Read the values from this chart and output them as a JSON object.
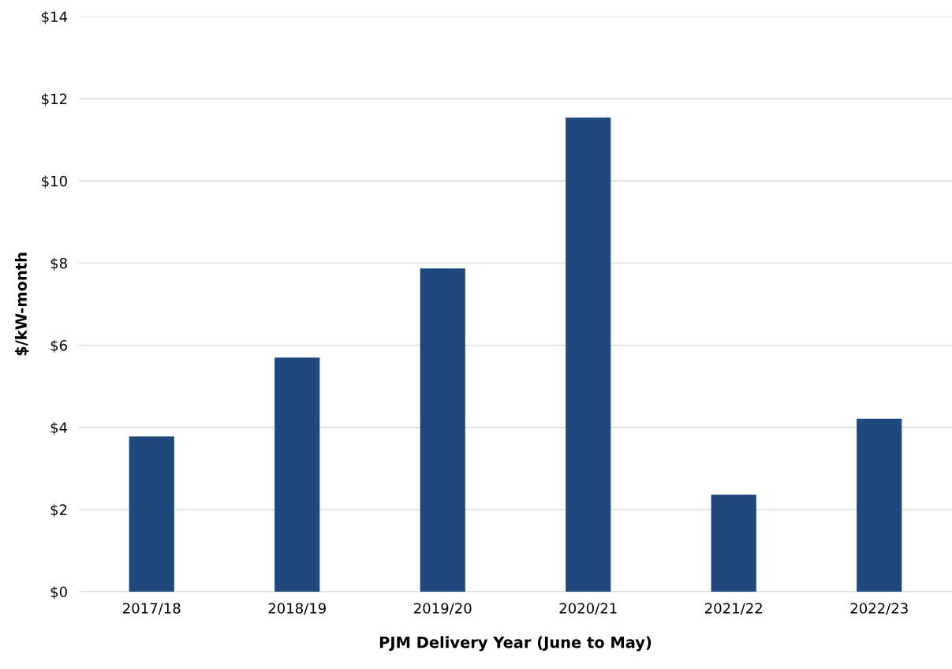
{
  "chart_data": {
    "type": "bar",
    "xlabel": "PJM Delivery Year (June to May)",
    "ylabel": "$/kW-month",
    "categories": [
      "2017/18",
      "2018/19",
      "2019/20",
      "2020/21",
      "2021/22",
      "2022/23"
    ],
    "values": [
      3.78,
      5.7,
      7.87,
      11.54,
      2.36,
      4.21
    ],
    "color": "#1f497d",
    "ylim": [
      0,
      14
    ],
    "yticks": [
      {
        "value": 0,
        "label": "$0"
      },
      {
        "value": 2,
        "label": "$2"
      },
      {
        "value": 4,
        "label": "$4"
      },
      {
        "value": 6,
        "label": "$6"
      },
      {
        "value": 8,
        "label": "$8"
      },
      {
        "value": 10,
        "label": "$10"
      },
      {
        "value": 12,
        "label": "$12"
      },
      {
        "value": 14,
        "label": "$14"
      }
    ],
    "grid": "y"
  }
}
